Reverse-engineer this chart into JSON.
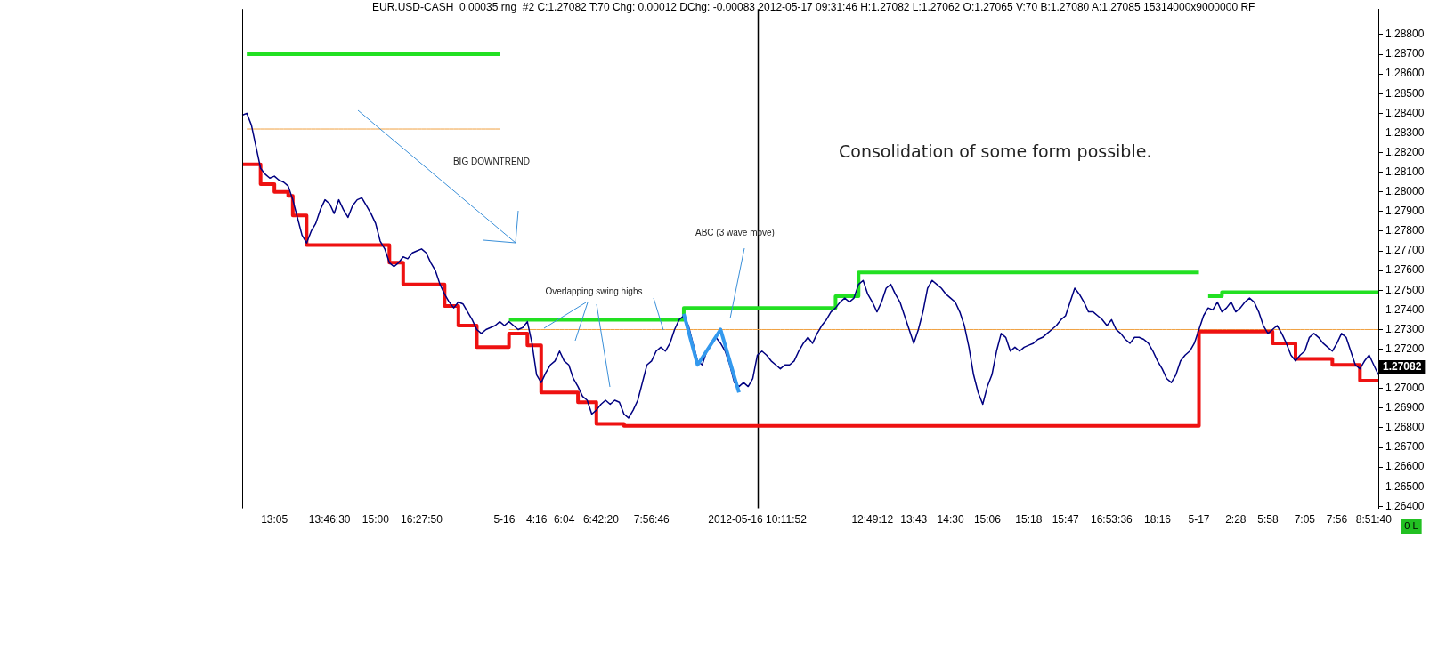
{
  "chart_data": {
    "type": "line",
    "title": "EUR.USD-CASH  0.00035 rng  #2 C:1.27082 T:70 Chg: 0.00012 DChg: -0.00083 2012-05-17 09:31:46 H:1.27082 L:1.27062 O:1.27065 V:70 B:1.27080 A:1.27085 15314000x9000000 RF",
    "categories": [
      null,
      null,
      null,
      null,
      null,
      null,
      null,
      "13:05",
      null,
      null,
      null,
      null,
      null,
      null,
      null,
      null,
      null,
      null,
      null,
      "13:46:30",
      null,
      null,
      null,
      null,
      null,
      null,
      null,
      null,
      null,
      "15:00",
      null,
      null,
      null,
      null,
      null,
      null,
      null,
      null,
      null,
      "16:27:50",
      null,
      null,
      null,
      null,
      null,
      null,
      null,
      null,
      null,
      null,
      null,
      null,
      null,
      null,
      null,
      null,
      null,
      "5-16",
      null,
      null,
      null,
      null,
      null,
      null,
      "4:16",
      null,
      null,
      null,
      null,
      null,
      "6:04",
      null,
      null,
      null,
      null,
      null,
      null,
      null,
      "6:42:20",
      null,
      null,
      null,
      null,
      null,
      null,
      null,
      null,
      null,
      null,
      "7:56:46",
      null,
      null,
      null,
      null,
      null,
      null,
      null,
      null,
      null,
      null,
      null,
      null,
      null,
      null,
      null,
      null,
      null,
      null,
      null,
      null,
      null,
      null,
      "2012-05-16 10:11:52",
      null,
      null,
      null,
      null,
      null,
      null,
      null,
      null,
      null,
      null,
      null,
      null,
      null,
      null,
      null,
      null,
      null,
      null,
      null,
      null,
      null,
      null,
      null,
      null,
      "12:49:12",
      null,
      null,
      null,
      null,
      null,
      null,
      null,
      null,
      "13:43",
      null,
      null,
      null,
      null,
      null,
      null,
      null,
      "14:30",
      null,
      null,
      null,
      null,
      null,
      null,
      null,
      "15:06",
      null,
      null,
      null,
      null,
      null,
      null,
      null,
      null,
      "15:18",
      null,
      null,
      null,
      null,
      null,
      null,
      null,
      "15:47",
      null,
      null,
      null,
      null,
      null,
      null,
      null,
      null,
      null,
      "16:53:36",
      null,
      null,
      null,
      null,
      null,
      null,
      null,
      null,
      null,
      "18:16",
      null,
      null,
      null,
      null,
      null,
      null,
      null,
      null,
      "5-17",
      null,
      null,
      null,
      null,
      null,
      null,
      null,
      "2:28",
      null,
      null,
      null,
      null,
      null,
      null,
      "5:58",
      null,
      null,
      null,
      null,
      null,
      null,
      null,
      "7:05",
      null,
      null,
      null,
      null,
      null,
      null,
      "7:56",
      null,
      null,
      null,
      null,
      null,
      null,
      null,
      "8:51:40",
      null
    ],
    "series": [
      {
        "type": "line",
        "color": "#f0a040",
        "values": [
          null,
          1.2832,
          1.2832,
          1.2832,
          1.2832,
          1.2832,
          1.2832,
          1.2832,
          1.2832,
          1.2832,
          1.2832,
          1.2832,
          1.2832,
          1.2832,
          1.2832,
          1.2832,
          1.2832,
          1.2832,
          1.2832,
          1.2832,
          1.2832,
          1.2832,
          1.2832,
          1.2832,
          1.2832,
          1.2832,
          1.2832,
          1.2832,
          1.2832,
          1.2832,
          1.2832,
          1.2832,
          1.2832,
          1.2832,
          1.2832,
          1.2832,
          1.2832,
          1.2832,
          1.2832,
          1.2832,
          1.2832,
          1.2832,
          1.2832,
          1.2832,
          1.2832,
          1.2832,
          1.2832,
          1.2832,
          1.2832,
          1.2832,
          1.2832,
          1.2832,
          1.2832,
          1.2832,
          1.2832,
          1.2832,
          1.2832,
          null,
          1.273,
          1.273,
          1.273,
          1.273,
          1.273,
          1.273,
          1.273,
          1.273,
          1.273,
          1.273,
          1.273,
          1.273,
          1.273,
          1.273,
          1.273,
          1.273,
          1.273,
          1.273,
          1.273,
          1.273,
          1.273,
          1.273,
          1.273,
          1.273,
          1.273,
          1.273,
          1.273,
          1.273,
          1.273,
          1.273,
          1.273,
          1.273,
          1.273,
          1.273,
          1.273,
          1.273,
          1.273,
          1.273,
          1.273,
          1.273,
          1.273,
          1.273,
          1.273,
          1.273,
          1.273,
          1.273,
          1.273,
          1.273,
          1.273,
          1.273,
          1.273,
          1.273,
          1.273,
          1.273,
          1.273,
          1.273,
          1.273,
          1.273,
          1.273,
          1.273,
          1.273,
          1.273,
          1.273,
          1.273,
          1.273,
          1.273,
          1.273,
          1.273,
          1.273,
          1.273,
          1.273,
          1.273,
          1.273,
          1.273,
          1.273,
          1.273,
          1.273,
          1.273,
          1.273,
          1.273,
          1.273,
          1.273,
          1.273,
          1.273,
          1.273,
          1.273,
          1.273,
          1.273,
          1.273,
          1.273,
          1.273,
          1.273,
          1.273,
          1.273,
          1.273,
          1.273,
          1.273,
          1.273,
          1.273,
          1.273,
          1.273,
          1.273,
          1.273,
          1.273,
          1.273,
          1.273,
          1.273,
          1.273,
          1.273,
          1.273,
          1.273,
          1.273,
          1.273,
          1.273,
          1.273,
          1.273,
          1.273,
          1.273,
          1.273,
          1.273,
          1.273,
          1.273,
          1.273,
          1.273,
          1.273,
          1.273,
          1.273,
          1.273,
          1.273,
          1.273,
          1.273,
          1.273,
          1.273,
          1.273,
          1.273,
          1.273,
          1.273,
          1.273,
          1.273,
          1.273,
          1.273,
          1.273,
          1.273,
          1.273,
          1.273,
          1.273,
          1.273,
          1.273,
          1.273,
          1.273,
          1.273,
          1.273,
          1.273,
          1.273,
          1.273,
          1.273,
          1.273,
          1.273,
          1.273,
          1.273,
          1.273,
          1.273,
          1.273,
          1.273,
          1.273,
          1.273,
          1.273,
          1.273,
          1.273,
          1.273,
          1.273,
          1.273,
          1.273,
          1.273,
          1.273,
          1.273,
          1.273,
          1.273,
          1.273,
          1.273,
          1.273,
          1.273,
          1.273,
          1.273,
          1.273,
          1.273,
          1.273,
          1.273,
          1.273,
          1.273
        ]
      },
      {
        "type": "step",
        "color": "#22e022",
        "values": [
          null,
          1.287,
          1.287,
          1.287,
          1.287,
          1.287,
          1.287,
          1.287,
          1.287,
          1.287,
          1.287,
          1.287,
          1.287,
          1.287,
          1.287,
          1.287,
          1.287,
          1.287,
          1.287,
          1.287,
          1.287,
          1.287,
          1.287,
          1.287,
          1.287,
          1.287,
          1.287,
          1.287,
          1.287,
          1.287,
          1.287,
          1.287,
          1.287,
          1.287,
          1.287,
          1.287,
          1.287,
          1.287,
          1.287,
          1.287,
          1.287,
          1.287,
          1.287,
          1.287,
          1.287,
          1.287,
          1.287,
          1.287,
          1.287,
          1.287,
          1.287,
          1.287,
          1.287,
          1.287,
          1.287,
          1.287,
          1.287,
          null,
          1.2735,
          1.2735,
          1.2735,
          1.2735,
          1.2735,
          1.2735,
          1.2735,
          1.2735,
          1.2735,
          1.2735,
          1.2735,
          1.2735,
          1.2735,
          1.2735,
          1.2735,
          1.2735,
          1.2735,
          1.2735,
          1.2735,
          1.2735,
          1.2735,
          1.2735,
          1.2735,
          1.2735,
          1.2735,
          1.2735,
          1.2735,
          1.2735,
          1.2735,
          1.2735,
          1.2735,
          1.2735,
          1.2735,
          1.2735,
          1.2735,
          1.2735,
          1.2735,
          1.2735,
          1.2741,
          1.2741,
          1.2741,
          1.2741,
          1.2741,
          1.2741,
          1.2741,
          1.2741,
          1.2741,
          1.2741,
          1.2741,
          1.2741,
          1.2741,
          1.2741,
          1.2741,
          1.2741,
          1.2741,
          1.2741,
          1.2741,
          1.2741,
          1.2741,
          1.2741,
          1.2741,
          1.2741,
          1.2741,
          1.2741,
          1.2741,
          1.2741,
          1.2741,
          1.2741,
          1.2741,
          1.2741,
          1.2741,
          1.2747,
          1.2747,
          1.2747,
          1.2747,
          1.2747,
          1.2759,
          1.2759,
          1.2759,
          1.2759,
          1.2759,
          1.2759,
          1.2759,
          1.2759,
          1.2759,
          1.2759,
          1.2759,
          1.2759,
          1.2759,
          1.2759,
          1.2759,
          1.2759,
          1.2759,
          1.2759,
          1.2759,
          1.2759,
          1.2759,
          1.2759,
          1.2759,
          1.2759,
          1.2759,
          1.2759,
          1.2759,
          1.2759,
          1.2759,
          1.2759,
          1.2759,
          1.2759,
          1.2759,
          1.2759,
          1.2759,
          1.2759,
          1.2759,
          1.2759,
          1.2759,
          1.2759,
          1.2759,
          1.2759,
          1.2759,
          1.2759,
          1.2759,
          1.2759,
          1.2759,
          1.2759,
          1.2759,
          1.2759,
          1.2759,
          1.2759,
          1.2759,
          1.2759,
          1.2759,
          1.2759,
          1.2759,
          1.2759,
          1.2759,
          1.2759,
          1.2759,
          1.2759,
          1.2759,
          1.2759,
          1.2759,
          1.2759,
          1.2759,
          1.2759,
          1.2759,
          1.2759,
          1.2759,
          1.2759,
          1.2759,
          1.2759,
          1.2759,
          null,
          1.2747,
          1.2747,
          1.2747,
          1.2749,
          1.2749,
          1.2749,
          1.2749,
          1.2749,
          1.2749,
          1.2749,
          1.2749,
          1.2749,
          1.2749,
          1.2749,
          1.2749,
          1.2749,
          1.2749,
          1.2749,
          1.2749,
          1.2749,
          1.2749,
          1.2749,
          1.2749,
          1.2749,
          1.2749,
          1.2749,
          1.2749,
          1.2749,
          1.2749,
          1.2749,
          1.2749,
          1.2749,
          1.2749,
          1.2749,
          1.2749,
          1.2749,
          1.2749,
          1.2749
        ]
      },
      {
        "type": "step",
        "color": "#ee1111",
        "values": [
          1.2814,
          1.2814,
          1.2814,
          1.2814,
          1.2804,
          1.2804,
          1.2804,
          1.28,
          1.28,
          1.28,
          1.2798,
          1.2788,
          1.2788,
          1.2788,
          1.2773,
          1.2773,
          1.2773,
          1.2773,
          1.2773,
          1.2773,
          1.2773,
          1.2773,
          1.2773,
          1.2773,
          1.2773,
          1.2773,
          1.2773,
          1.2773,
          1.2773,
          1.2773,
          1.2773,
          1.2773,
          1.2764,
          1.2764,
          1.2764,
          1.2753,
          1.2753,
          1.2753,
          1.2753,
          1.2753,
          1.2753,
          1.2753,
          1.2753,
          1.2753,
          1.2742,
          1.2742,
          1.2742,
          1.2732,
          1.2732,
          1.2732,
          1.2732,
          1.2721,
          1.2721,
          1.2721,
          1.2721,
          1.2721,
          1.2721,
          1.2721,
          1.2728,
          1.2728,
          1.2728,
          1.2728,
          1.2722,
          1.2722,
          1.2722,
          1.2698,
          1.2698,
          1.2698,
          1.2698,
          1.2698,
          1.2698,
          1.2698,
          1.2698,
          1.2693,
          1.2693,
          1.2693,
          1.2693,
          1.2682,
          1.2682,
          1.2682,
          1.2682,
          1.2682,
          1.2682,
          1.2681,
          1.2681,
          1.2681,
          1.2681,
          1.2681,
          1.2681,
          1.2681,
          1.2681,
          1.2681,
          1.2681,
          1.2681,
          1.2681,
          1.2681,
          1.2681,
          1.2681,
          1.2681,
          1.2681,
          1.2681,
          1.2681,
          1.2681,
          1.2681,
          1.2681,
          1.2681,
          1.2681,
          1.2681,
          1.2681,
          1.2681,
          1.2681,
          1.2681,
          1.2681,
          1.2681,
          1.2681,
          1.2681,
          1.2681,
          1.2681,
          1.2681,
          1.2681,
          1.2681,
          1.2681,
          1.2681,
          1.2681,
          1.2681,
          1.2681,
          1.2681,
          1.2681,
          1.2681,
          1.2681,
          1.2681,
          1.2681,
          1.2681,
          1.2681,
          1.2681,
          1.2681,
          1.2681,
          1.2681,
          1.2681,
          1.2681,
          1.2681,
          1.2681,
          1.2681,
          1.2681,
          1.2681,
          1.2681,
          1.2681,
          1.2681,
          1.2681,
          1.2681,
          1.2681,
          1.2681,
          1.2681,
          1.2681,
          1.2681,
          1.2681,
          1.2681,
          1.2681,
          1.2681,
          1.2681,
          1.2681,
          1.2681,
          1.2681,
          1.2681,
          1.2681,
          1.2681,
          1.2681,
          1.2681,
          1.2681,
          1.2681,
          1.2681,
          1.2681,
          1.2681,
          1.2681,
          1.2681,
          1.2681,
          1.2681,
          1.2681,
          1.2681,
          1.2681,
          1.2681,
          1.2681,
          1.2681,
          1.2681,
          1.2681,
          1.2681,
          1.2681,
          1.2681,
          1.2681,
          1.2681,
          1.2681,
          1.2681,
          1.2681,
          1.2681,
          1.2681,
          1.2681,
          1.2681,
          1.2681,
          1.2681,
          1.2681,
          1.2681,
          1.2681,
          1.2681,
          1.2681,
          1.2681,
          1.2681,
          1.2681,
          1.2681,
          1.2729,
          1.2729,
          1.2729,
          1.2729,
          1.2729,
          1.2729,
          1.2729,
          1.2729,
          1.2729,
          1.2729,
          1.2729,
          1.2729,
          1.2729,
          1.2729,
          1.2729,
          1.2729,
          1.2723,
          1.2723,
          1.2723,
          1.2723,
          1.2723,
          1.2715,
          1.2715,
          1.2715,
          1.2715,
          1.2715,
          1.2715,
          1.2715,
          1.2715,
          1.2712,
          1.2712,
          1.2712,
          1.2712,
          1.2712,
          1.2712,
          1.2704,
          1.2704,
          1.2704,
          1.2704,
          1.2704
        ]
      },
      {
        "type": "line",
        "color": "#000080",
        "values": [
          1.2839,
          1.284,
          1.2834,
          1.2823,
          1.2812,
          1.2809,
          1.2807,
          1.2808,
          1.2806,
          1.2805,
          1.2803,
          1.2796,
          1.2787,
          1.2778,
          1.2774,
          1.278,
          1.2784,
          1.2791,
          1.2796,
          1.2794,
          1.2789,
          1.2796,
          1.2791,
          1.2787,
          1.2793,
          1.2796,
          1.2797,
          1.2793,
          1.2789,
          1.2784,
          1.2775,
          1.2771,
          1.2764,
          1.2762,
          1.2764,
          1.2767,
          1.2766,
          1.2769,
          1.277,
          1.2771,
          1.2769,
          1.2764,
          1.276,
          1.2753,
          1.2748,
          1.2744,
          1.2741,
          1.2744,
          1.2743,
          1.2739,
          1.2735,
          1.273,
          1.2728,
          1.273,
          1.2731,
          1.2732,
          1.2734,
          1.2732,
          1.2734,
          1.2732,
          1.273,
          1.2731,
          1.2734,
          1.2723,
          1.2707,
          1.2703,
          1.2708,
          1.2712,
          1.2714,
          1.2719,
          1.2714,
          1.2712,
          1.2705,
          1.2701,
          1.2696,
          1.2694,
          1.2687,
          1.2689,
          1.2692,
          1.2694,
          1.2692,
          1.2694,
          1.2693,
          1.2687,
          1.2685,
          1.2689,
          1.2694,
          1.2703,
          1.2712,
          1.2714,
          1.2719,
          1.2721,
          1.2719,
          1.2723,
          1.273,
          1.2735,
          1.2737,
          1.2732,
          1.2723,
          1.2714,
          1.2712,
          1.2719,
          1.2723,
          1.2726,
          1.2723,
          1.2719,
          1.2712,
          1.2703,
          1.2701,
          1.2703,
          1.2701,
          1.2705,
          1.2717,
          1.2719,
          1.2717,
          1.2714,
          1.2712,
          1.271,
          1.2712,
          1.2712,
          1.2714,
          1.2719,
          1.2723,
          1.2726,
          1.2723,
          1.2728,
          1.2732,
          1.2735,
          1.2739,
          1.2741,
          1.2744,
          1.2746,
          1.2744,
          1.2746,
          1.2753,
          1.2755,
          1.2748,
          1.2744,
          1.2739,
          1.2744,
          1.2751,
          1.2753,
          1.2748,
          1.2744,
          1.2737,
          1.273,
          1.2723,
          1.273,
          1.2739,
          1.2751,
          1.2755,
          1.2753,
          1.2751,
          1.2748,
          1.2746,
          1.2744,
          1.2739,
          1.2732,
          1.2721,
          1.2707,
          1.2698,
          1.2692,
          1.2701,
          1.2707,
          1.2719,
          1.2728,
          1.2726,
          1.2719,
          1.2721,
          1.2719,
          1.2721,
          1.2722,
          1.2723,
          1.2725,
          1.2726,
          1.2728,
          1.273,
          1.2732,
          1.2735,
          1.2737,
          1.2744,
          1.2751,
          1.2748,
          1.2744,
          1.2739,
          1.2739,
          1.2737,
          1.2735,
          1.2732,
          1.2735,
          1.273,
          1.2728,
          1.2725,
          1.2723,
          1.2726,
          1.2726,
          1.2725,
          1.2723,
          1.2719,
          1.2714,
          1.271,
          1.2705,
          1.2703,
          1.2707,
          1.2714,
          1.2717,
          1.2719,
          1.2723,
          1.273,
          1.2737,
          1.2741,
          1.274,
          1.2744,
          1.2739,
          1.2741,
          1.2744,
          1.2739,
          1.2741,
          1.2744,
          1.2746,
          1.2744,
          1.2739,
          1.2732,
          1.2728,
          1.273,
          1.2732,
          1.2728,
          1.2723,
          1.2717,
          1.2714,
          1.2717,
          1.2719,
          1.2726,
          1.2728,
          1.2726,
          1.2723,
          1.2721,
          1.2719,
          1.2723,
          1.2728,
          1.2726,
          1.2719,
          1.2712,
          1.271,
          1.2714,
          1.2717,
          1.2712,
          1.2707
        ]
      },
      {
        "type": "line",
        "color": "#3399ee",
        "values": [
          null,
          null,
          null,
          null,
          null,
          null,
          null,
          null,
          null,
          null,
          null,
          null,
          null,
          null,
          null,
          null,
          null,
          null,
          null,
          null,
          null,
          null,
          null,
          null,
          null,
          null,
          null,
          null,
          null,
          null,
          null,
          null,
          null,
          null,
          null,
          null,
          null,
          null,
          null,
          null,
          null,
          null,
          null,
          null,
          null,
          null,
          null,
          null,
          null,
          null,
          null,
          null,
          null,
          null,
          null,
          null,
          null,
          null,
          null,
          null,
          null,
          null,
          null,
          null,
          null,
          null,
          null,
          null,
          null,
          null,
          null,
          null,
          null,
          null,
          null,
          null,
          null,
          null,
          null,
          null,
          null,
          null,
          null,
          null,
          null,
          null,
          null,
          null,
          null,
          null,
          null,
          null,
          null,
          null,
          null,
          null,
          1.2738,
          null,
          null,
          1.2712,
          null,
          null,
          null,
          null,
          1.273,
          null,
          null,
          null,
          1.2698,
          null,
          null,
          null,
          null,
          null,
          null,
          null,
          null,
          null,
          null,
          null,
          null,
          null,
          null,
          null,
          null,
          null,
          null,
          null,
          null,
          null,
          null,
          null,
          null,
          null,
          null,
          null,
          null,
          null,
          null,
          null,
          null,
          null,
          null,
          null,
          null,
          null,
          null,
          null,
          null,
          null,
          null,
          null,
          null,
          null,
          null,
          null,
          null,
          null,
          null,
          null,
          null,
          null,
          null,
          null,
          null,
          null,
          null,
          null,
          null,
          null,
          null,
          null,
          null,
          null,
          null,
          null,
          null,
          null,
          null,
          null,
          null,
          null,
          null,
          null,
          null,
          null,
          null,
          null,
          null,
          null,
          null,
          null,
          null,
          null,
          null,
          null,
          null,
          null,
          null,
          null,
          null,
          null,
          null,
          null,
          null,
          null,
          null,
          null,
          null,
          null,
          null,
          null,
          null,
          null,
          null,
          null,
          null,
          null,
          null,
          null,
          null,
          null,
          null,
          null,
          null,
          null,
          null,
          null,
          null,
          null,
          null,
          null,
          null,
          null,
          null,
          null,
          null,
          null,
          null,
          null,
          null,
          null,
          null,
          null,
          null,
          null,
          null,
          null
        ]
      }
    ],
    "ylim": [
      1.2639,
      1.2893
    ],
    "yticks": [
      {
        "value": 1.264,
        "label": "1.26400"
      },
      {
        "value": 1.265,
        "label": "1.26500"
      },
      {
        "value": 1.266,
        "label": "1.26600"
      },
      {
        "value": 1.267,
        "label": "1.26700"
      },
      {
        "value": 1.268,
        "label": "1.26800"
      },
      {
        "value": 1.269,
        "label": "1.26900"
      },
      {
        "value": 1.27,
        "label": "1.27000"
      },
      {
        "value": 1.271,
        "label": null
      },
      {
        "value": 1.272,
        "label": "1.27200"
      },
      {
        "value": 1.273,
        "label": "1.27300"
      },
      {
        "value": 1.274,
        "label": "1.27400"
      },
      {
        "value": 1.275,
        "label": "1.27500"
      },
      {
        "value": 1.276,
        "label": "1.27600"
      },
      {
        "value": 1.277,
        "label": "1.27700"
      },
      {
        "value": 1.278,
        "label": "1.27800"
      },
      {
        "value": 1.279,
        "label": "1.27900"
      },
      {
        "value": 1.28,
        "label": "1.28000"
      },
      {
        "value": 1.281,
        "label": "1.28100"
      },
      {
        "value": 1.282,
        "label": "1.28200"
      },
      {
        "value": 1.283,
        "label": "1.28300"
      },
      {
        "value": 1.284,
        "label": "1.28400"
      },
      {
        "value": 1.285,
        "label": "1.28500"
      },
      {
        "value": 1.286,
        "label": "1.28600"
      },
      {
        "value": 1.287,
        "label": "1.28700"
      },
      {
        "value": 1.288,
        "label": "1.28800"
      }
    ],
    "ref_lines": [
      {
        "axis": "x",
        "value": "2012-05-16 10:11:52",
        "color": "#000000"
      }
    ],
    "annotations": [
      "BIG DOWNTREND",
      "Overlapping swing highs",
      "ABC (3 wave move)",
      "Consolidation of some form possible.",
      "1.27082",
      "0 L"
    ]
  }
}
